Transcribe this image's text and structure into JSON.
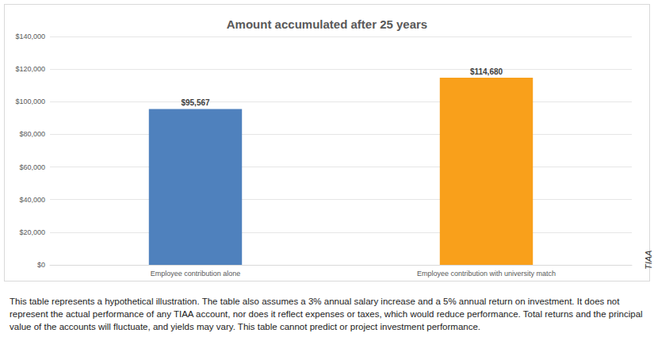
{
  "chart_data": {
    "type": "bar",
    "title": "Amount accumulated after 25 years",
    "categories": [
      "Employee contribution alone",
      "Employee contribution with university match"
    ],
    "values": [
      95567,
      114680
    ],
    "value_labels": [
      "$95,567",
      "$114,680"
    ],
    "colors": [
      "#4f81bd",
      "#f9a01b"
    ],
    "ylim": [
      0,
      140000
    ],
    "yticks": [
      {
        "value": 0,
        "label": "$0"
      },
      {
        "value": 20000,
        "label": "$20,000"
      },
      {
        "value": 40000,
        "label": "$40,000"
      },
      {
        "value": 60000,
        "label": "$60,000"
      },
      {
        "value": 80000,
        "label": "$80,000"
      },
      {
        "value": 100000,
        "label": "$100,000"
      },
      {
        "value": 120000,
        "label": "$120,000"
      },
      {
        "value": 140000,
        "label": "$140,000"
      }
    ],
    "grid": true,
    "data_labels": true,
    "source": "TIAA",
    "footnote": "This table represents a hypothetical illustration. The table also assumes a 3% annual salary increase and a 5% annual return on investment. It does not represent the actual performance of any TIAA account, nor does it reflect expenses or taxes, which would reduce performance. Total returns and the principal value of the accounts will fluctuate, and yields may vary. This table cannot predict or project investment performance."
  }
}
